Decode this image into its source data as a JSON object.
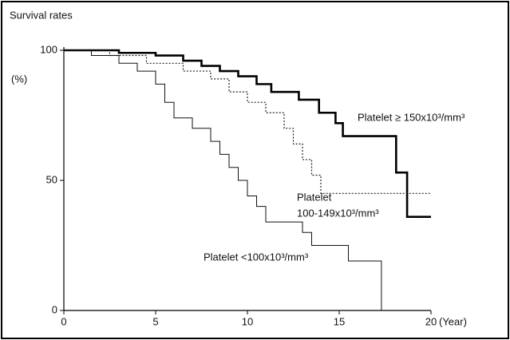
{
  "chart_data": {
    "type": "step",
    "title": "Survival rates",
    "ylabel": "(%)",
    "xlabel": "(Year)",
    "xlim": [
      0,
      20
    ],
    "ylim": [
      0,
      100
    ],
    "xticks": [
      0,
      5,
      10,
      15,
      20
    ],
    "yticks": [
      0,
      50,
      100
    ],
    "series": [
      {
        "name": [
          "Platelet ≥ 150x10³/mm³"
        ],
        "color": "#000",
        "line_width": 2.6,
        "dash": "none",
        "x": [
          0,
          3,
          3,
          5,
          5,
          6.5,
          6.5,
          7.5,
          7.5,
          8.5,
          8.5,
          9.5,
          9.5,
          10.5,
          10.5,
          11.3,
          11.3,
          12.8,
          12.8,
          13.9,
          13.9,
          14.8,
          14.8,
          15.2,
          15.2,
          18.1,
          18.1,
          18.7,
          18.7,
          20
        ],
        "values": [
          100,
          100,
          99,
          99,
          98,
          98,
          96,
          96,
          94,
          94,
          92,
          92,
          90,
          90,
          87,
          87,
          84,
          84,
          81,
          81,
          76,
          76,
          72,
          72,
          67,
          67,
          53,
          53,
          36,
          36
        ]
      },
      {
        "name": [
          "Platelet",
          "100-149x10³/mm³"
        ],
        "color": "#222",
        "line_width": 1.2,
        "dash": "2 2",
        "x": [
          0,
          2.5,
          2.5,
          4.5,
          4.5,
          6.5,
          6.5,
          8,
          8,
          9,
          9,
          10,
          10,
          11,
          11,
          12,
          12,
          12.5,
          12.5,
          13,
          13,
          13.5,
          13.5,
          14,
          14,
          20
        ],
        "values": [
          100,
          100,
          98,
          98,
          95,
          95,
          92,
          92,
          89,
          89,
          84,
          84,
          80,
          80,
          76,
          76,
          70,
          70,
          64,
          64,
          58,
          58,
          52,
          52,
          45,
          45
        ]
      },
      {
        "name": [
          "Platelet <100x10³/mm³"
        ],
        "color": "#111",
        "line_width": 1,
        "dash": "none",
        "x": [
          0,
          1.5,
          1.5,
          3,
          3,
          4,
          4,
          5,
          5,
          5.5,
          5.5,
          6,
          6,
          7,
          7,
          8,
          8,
          8.5,
          8.5,
          9,
          9,
          9.5,
          9.5,
          10,
          10,
          10.5,
          10.5,
          11,
          11,
          13,
          13,
          13.5,
          13.5,
          15.5,
          15.5,
          17.3,
          17.3
        ],
        "values": [
          100,
          100,
          98,
          98,
          95,
          95,
          92,
          92,
          87,
          87,
          80,
          80,
          74,
          74,
          70,
          70,
          65,
          65,
          60,
          60,
          55,
          55,
          50,
          50,
          44,
          44,
          40,
          40,
          34,
          34,
          30,
          30,
          25,
          25,
          19,
          19,
          0
        ]
      }
    ]
  }
}
